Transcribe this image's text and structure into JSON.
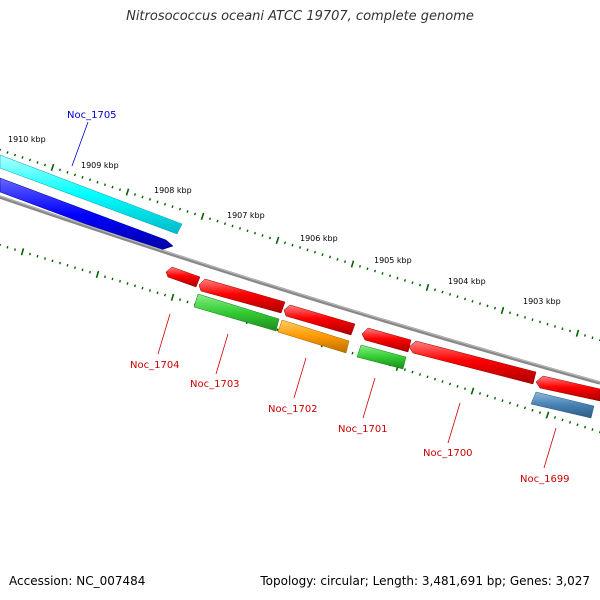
{
  "title": "Nitrosococcus oceani ATCC 19707, complete genome",
  "footer": {
    "accession": "Accession: NC_007484",
    "summary": "Topology: circular; Length: 3,481,691 bp; Genes: 3,027"
  },
  "ruler": [
    "1910 kbp",
    "1909 kbp",
    "1908 kbp",
    "1907 kbp",
    "1906 kbp",
    "1905 kbp",
    "1904 kbp",
    "1903 kbp"
  ],
  "genes": {
    "noc_1705": "Noc_1705",
    "noc_1704": "Noc_1704",
    "noc_1703": "Noc_1703",
    "noc_1702": "Noc_1702",
    "noc_1701": "Noc_1701",
    "noc_1700": "Noc_1700",
    "noc_1699": "Noc_1699"
  },
  "colors": {
    "forward_cds": "#00ffff",
    "forward_gene": "#0000ff",
    "reverse_cds": "#ff0000",
    "reverse_gene_green": "#33cc33",
    "reverse_gene_orange": "#ff9900",
    "reverse_gene_steel": "#4682b4",
    "backbone": "#808080",
    "ticks": "#006400",
    "label_forward": "#0000cc",
    "label_reverse": "#cc0000"
  }
}
